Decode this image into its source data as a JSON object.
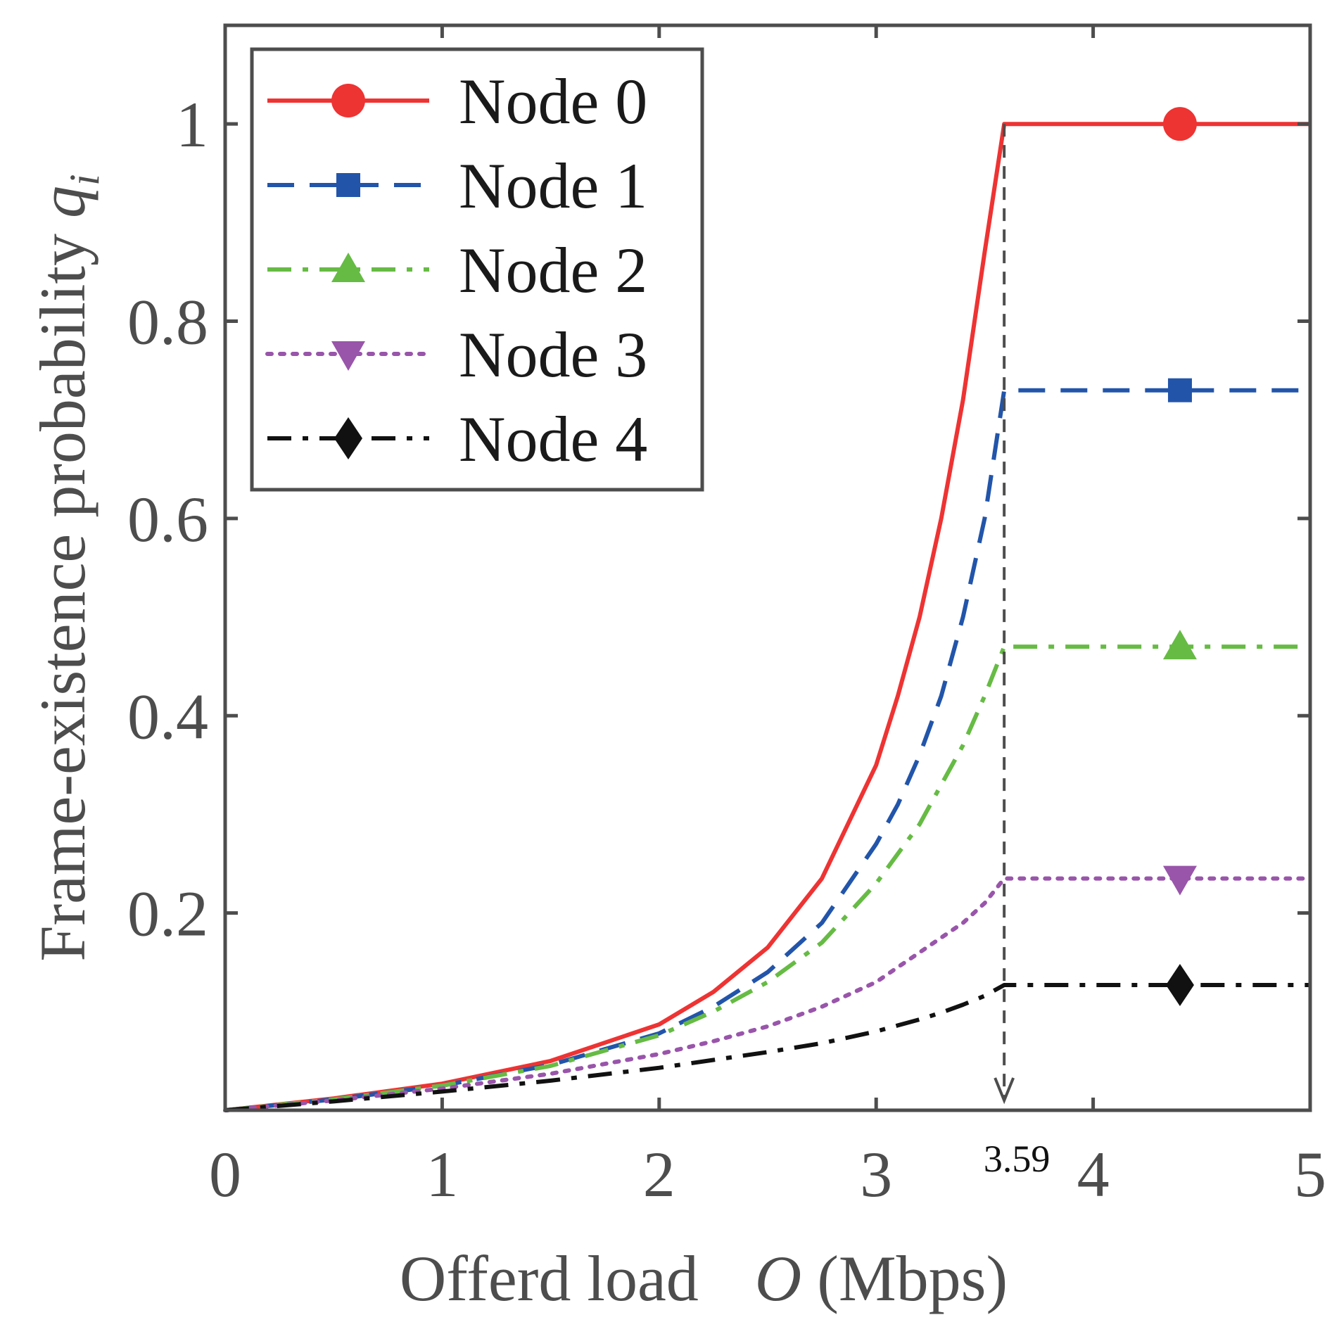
{
  "chart_data": {
    "type": "line",
    "xlabel": {
      "text": "Offerd load",
      "var": "O",
      "unit": "(Mbps)"
    },
    "ylabel": {
      "text": "Frame-existence probability",
      "var": "q",
      "sub": "i"
    },
    "xlim": [
      0,
      5
    ],
    "ylim": [
      0,
      1.1
    ],
    "xticks": [
      "0",
      "1",
      "2",
      "3",
      "4",
      "5"
    ],
    "yticks": [
      {
        "value": 0.2,
        "label": "0.2"
      },
      {
        "value": 0.4,
        "label": "0.4"
      },
      {
        "value": 0.6,
        "label": "0.6"
      },
      {
        "value": 0.8,
        "label": "0.8"
      },
      {
        "value": 1.0,
        "label": "1"
      }
    ],
    "grid": false,
    "legend_position": "top-left",
    "threshold": {
      "x": 3.59,
      "label": "3.59"
    },
    "series": [
      {
        "name": "Node 0",
        "color": "#ee3333",
        "style": "solid",
        "marker": "circle",
        "x": [
          0.0,
          0.5,
          1.0,
          1.5,
          2.0,
          2.25,
          2.5,
          2.75,
          3.0,
          3.1,
          3.2,
          3.3,
          3.4,
          3.5,
          3.59,
          4.0,
          4.5,
          5.0
        ],
        "y": [
          0.0,
          0.012,
          0.027,
          0.05,
          0.087,
          0.12,
          0.165,
          0.235,
          0.35,
          0.42,
          0.5,
          0.6,
          0.72,
          0.87,
          1.0,
          1.0,
          1.0,
          1.0
        ],
        "marker_x": [
          4.4
        ],
        "marker_y": [
          1.0
        ]
      },
      {
        "name": "Node 1",
        "color": "#2255aa",
        "style": "dashed",
        "marker": "square",
        "x": [
          0.0,
          0.5,
          1.0,
          1.5,
          2.0,
          2.25,
          2.5,
          2.75,
          3.0,
          3.1,
          3.2,
          3.3,
          3.4,
          3.5,
          3.59,
          4.0,
          4.5,
          5.0
        ],
        "y": [
          0.0,
          0.011,
          0.025,
          0.046,
          0.078,
          0.105,
          0.14,
          0.19,
          0.27,
          0.31,
          0.36,
          0.42,
          0.5,
          0.6,
          0.73,
          0.73,
          0.73,
          0.73
        ],
        "marker_x": [
          4.4
        ],
        "marker_y": [
          0.73
        ]
      },
      {
        "name": "Node 2",
        "color": "#66bb44",
        "style": "dashdot",
        "marker": "triangle-up",
        "x": [
          0.0,
          0.5,
          1.0,
          1.5,
          2.0,
          2.25,
          2.5,
          2.75,
          3.0,
          3.1,
          3.2,
          3.3,
          3.4,
          3.5,
          3.59,
          4.0,
          4.5,
          5.0
        ],
        "y": [
          0.0,
          0.011,
          0.025,
          0.045,
          0.076,
          0.1,
          0.13,
          0.17,
          0.23,
          0.26,
          0.29,
          0.33,
          0.37,
          0.42,
          0.47,
          0.47,
          0.47,
          0.47
        ],
        "marker_x": [
          4.4
        ],
        "marker_y": [
          0.47
        ]
      },
      {
        "name": "Node 3",
        "color": "#9955aa",
        "style": "dotted",
        "marker": "triangle-down",
        "x": [
          0.0,
          0.5,
          1.0,
          1.5,
          2.0,
          2.25,
          2.5,
          2.75,
          3.0,
          3.1,
          3.2,
          3.3,
          3.4,
          3.5,
          3.59,
          4.0,
          4.5,
          5.0
        ],
        "y": [
          0.0,
          0.01,
          0.022,
          0.037,
          0.057,
          0.07,
          0.085,
          0.105,
          0.13,
          0.145,
          0.16,
          0.175,
          0.19,
          0.21,
          0.235,
          0.235,
          0.235,
          0.235
        ],
        "marker_x": [
          4.4
        ],
        "marker_y": [
          0.235
        ]
      },
      {
        "name": "Node 4",
        "color": "#111111",
        "style": "dashdot",
        "marker": "diamond",
        "x": [
          0.0,
          0.5,
          1.0,
          1.5,
          2.0,
          2.25,
          2.5,
          2.75,
          3.0,
          3.1,
          3.2,
          3.3,
          3.4,
          3.5,
          3.59,
          4.0,
          4.5,
          5.0
        ],
        "y": [
          0.0,
          0.009,
          0.019,
          0.03,
          0.043,
          0.051,
          0.059,
          0.068,
          0.08,
          0.086,
          0.092,
          0.099,
          0.107,
          0.116,
          0.127,
          0.127,
          0.127,
          0.127
        ],
        "marker_x": [
          4.4
        ],
        "marker_y": [
          0.127
        ]
      }
    ]
  }
}
